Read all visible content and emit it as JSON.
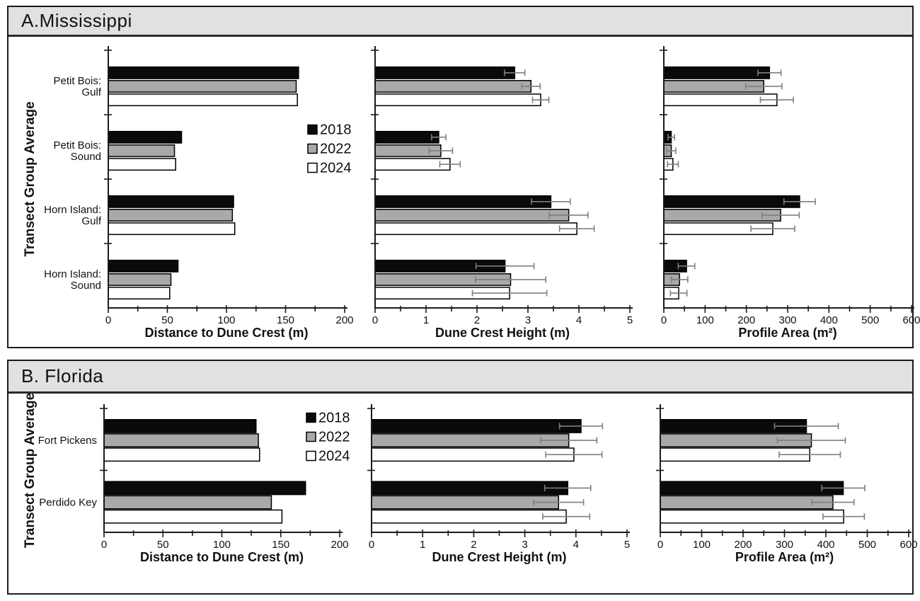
{
  "colors": {
    "bar_black": "#0a0a0a",
    "bar_gray": "#a9a9a9",
    "bar_white": "#ffffff",
    "bar_stroke": "#000000",
    "error_bar": "#7f7f7f",
    "axis": "#1a1a1a",
    "header_bg": "#e1e1e1",
    "panel_border": "#1a1a1a",
    "text": "#111111"
  },
  "chart_data": [
    {
      "id": "A",
      "title": "A.Mississippi",
      "type": "bar",
      "orientation": "horizontal",
      "ylabel": "Transect Group Average",
      "categories": [
        [
          "Petit Bois:",
          "Gulf"
        ],
        [
          "Petit Bois:",
          "Sound"
        ],
        [
          "Horn Island:",
          "Gulf"
        ],
        [
          "Horn Island:",
          "Sound"
        ]
      ],
      "legend": {
        "labels": [
          "2018",
          "2022",
          "2024"
        ],
        "position": "inside-first-chart"
      },
      "charts": [
        {
          "xlabel": "Distance to Dune Crest (m)",
          "xlim": [
            0,
            200
          ],
          "major_step": 50,
          "minor_step": 25,
          "tick_labels": [
            "0",
            "50",
            "100",
            "150",
            "200"
          ],
          "show_legend": true,
          "series": [
            {
              "name": "2018",
              "fill": "bar_black",
              "values": [
                161,
                62,
                106,
                59
              ],
              "errors": null
            },
            {
              "name": "2022",
              "fill": "bar_gray",
              "values": [
                159,
                56,
                105,
                53
              ],
              "errors": null
            },
            {
              "name": "2024",
              "fill": "bar_white",
              "values": [
                160,
                57,
                107,
                52
              ],
              "errors": null
            }
          ]
        },
        {
          "xlabel": "Dune Crest Height (m)",
          "xlim": [
            0,
            5
          ],
          "major_step": 1,
          "minor_step": 0.5,
          "tick_labels": [
            "0",
            "1",
            "2",
            "3",
            "4",
            "5"
          ],
          "show_legend": false,
          "series": [
            {
              "name": "2018",
              "fill": "bar_black",
              "values": [
                2.74,
                1.25,
                3.45,
                2.55
              ],
              "errors": [
                0.2,
                0.14,
                0.38,
                0.57
              ]
            },
            {
              "name": "2022",
              "fill": "bar_gray",
              "values": [
                3.06,
                1.29,
                3.8,
                2.66
              ],
              "errors": [
                0.18,
                0.23,
                0.38,
                0.69
              ]
            },
            {
              "name": "2024",
              "fill": "bar_white",
              "values": [
                3.25,
                1.47,
                3.96,
                2.64
              ],
              "errors": [
                0.16,
                0.2,
                0.34,
                0.73
              ]
            }
          ]
        },
        {
          "xlabel": "Profile Area (m²)",
          "xlim": [
            0,
            600
          ],
          "major_step": 100,
          "minor_step": 50,
          "tick_labels": [
            "0",
            "100",
            "200",
            "300",
            "400",
            "500",
            "600"
          ],
          "show_legend": false,
          "series": [
            {
              "name": "2018",
              "fill": "bar_black",
              "values": [
                256,
                18,
                329,
                55
              ],
              "errors": [
                28,
                8,
                38,
                20
              ]
            },
            {
              "name": "2022",
              "fill": "bar_gray",
              "values": [
                242,
                18,
                283,
                38
              ],
              "errors": [
                44,
                11,
                45,
                20
              ]
            },
            {
              "name": "2024",
              "fill": "bar_white",
              "values": [
                274,
                22,
                264,
                36
              ],
              "errors": [
                40,
                13,
                53,
                20
              ]
            }
          ]
        }
      ]
    },
    {
      "id": "B",
      "title": "B. Florida",
      "type": "bar",
      "orientation": "horizontal",
      "ylabel": "Transect Group Average",
      "categories": [
        [
          "Fort Pickens"
        ],
        [
          "Perdido Key"
        ]
      ],
      "legend": {
        "labels": [
          "2018",
          "2022",
          "2024"
        ],
        "position": "inside-first-chart"
      },
      "charts": [
        {
          "xlabel": "Distance to Dune Crest (m)",
          "xlim": [
            0,
            200
          ],
          "major_step": 50,
          "minor_step": 25,
          "tick_labels": [
            "0",
            "50",
            "100",
            "150",
            "200"
          ],
          "show_legend": true,
          "series": [
            {
              "name": "2018",
              "fill": "bar_black",
              "values": [
                129,
                171
              ],
              "errors": null
            },
            {
              "name": "2022",
              "fill": "bar_gray",
              "values": [
                131,
                142
              ],
              "errors": null
            },
            {
              "name": "2024",
              "fill": "bar_white",
              "values": [
                132,
                151
              ],
              "errors": null
            }
          ]
        },
        {
          "xlabel": "Dune Crest Height (m)",
          "xlim": [
            0,
            5
          ],
          "major_step": 1,
          "minor_step": 0.5,
          "tick_labels": [
            "0",
            "1",
            "2",
            "3",
            "4",
            "5"
          ],
          "show_legend": false,
          "series": [
            {
              "name": "2018",
              "fill": "bar_black",
              "values": [
                4.1,
                3.84
              ],
              "errors": [
                0.42,
                0.45
              ]
            },
            {
              "name": "2022",
              "fill": "bar_gray",
              "values": [
                3.86,
                3.66
              ],
              "errors": [
                0.55,
                0.49
              ]
            },
            {
              "name": "2024",
              "fill": "bar_white",
              "values": [
                3.96,
                3.81
              ],
              "errors": [
                0.55,
                0.46
              ]
            }
          ]
        },
        {
          "xlabel": "Profile Area (m²)",
          "xlim": [
            0,
            600
          ],
          "major_step": 100,
          "minor_step": 50,
          "tick_labels": [
            "0",
            "100",
            "200",
            "300",
            "400",
            "500",
            "600"
          ],
          "show_legend": false,
          "series": [
            {
              "name": "2018",
              "fill": "bar_black",
              "values": [
                353,
                442
              ],
              "errors": [
                77,
                52
              ]
            },
            {
              "name": "2022",
              "fill": "bar_gray",
              "values": [
                365,
                417
              ],
              "errors": [
                82,
                51
              ]
            },
            {
              "name": "2024",
              "fill": "bar_white",
              "values": [
                361,
                443
              ],
              "errors": [
                74,
                50
              ]
            }
          ]
        }
      ]
    }
  ]
}
